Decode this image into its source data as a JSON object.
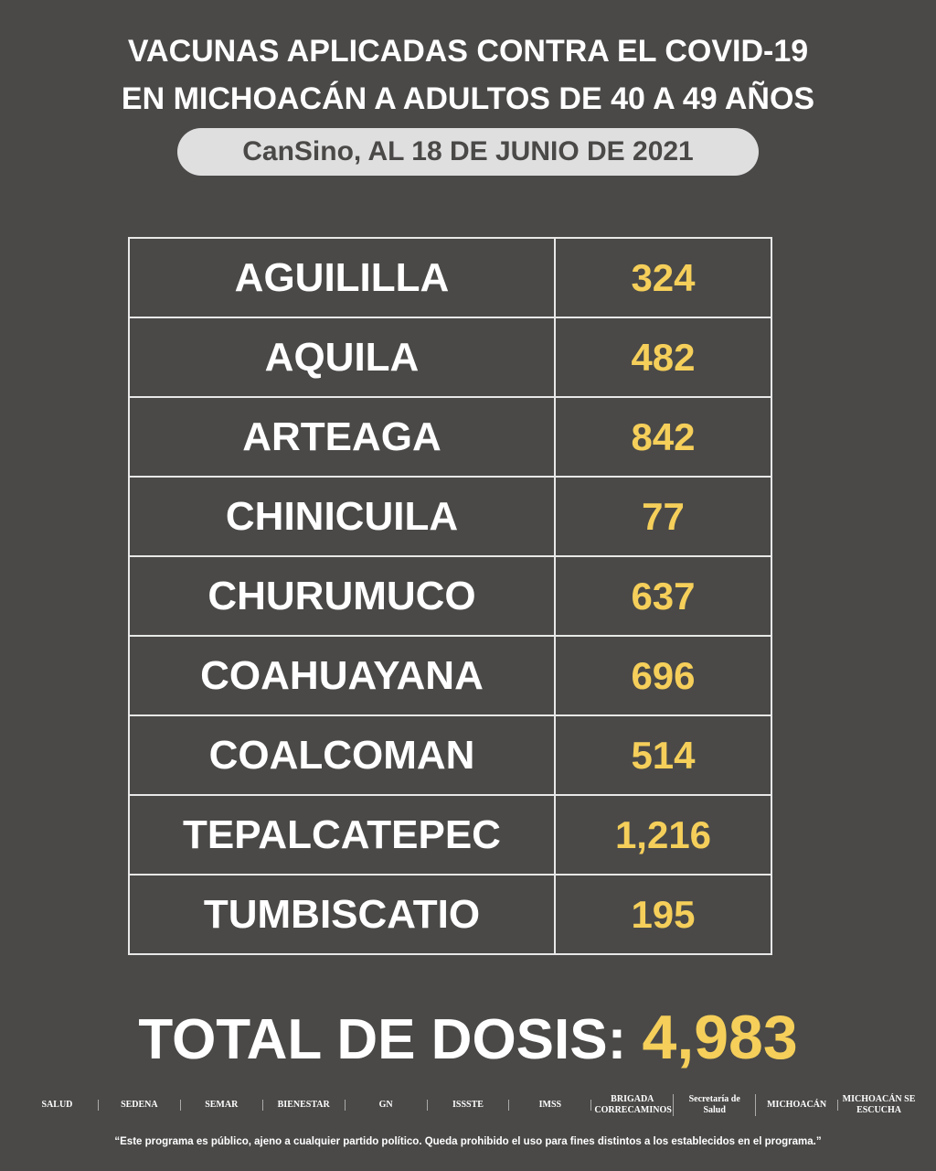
{
  "header": {
    "title_line1": "VACUNAS APLICADAS CONTRA EL COVID-19",
    "title_line2": "EN MICHOACÁN A ADULTOS DE 40 A 49 AÑOS",
    "subtitle": "CanSino, AL 18 DE JUNIO DE 2021"
  },
  "colors": {
    "background": "#4a4948",
    "accent": "#f5cf5a",
    "pill": "#e0dfdf"
  },
  "rows": [
    {
      "municipio": "AGUILILLA",
      "dosis": "324"
    },
    {
      "municipio": "AQUILA",
      "dosis": "482"
    },
    {
      "municipio": "ARTEAGA",
      "dosis": "842"
    },
    {
      "municipio": "CHINICUILA",
      "dosis": "77"
    },
    {
      "municipio": "CHURUMUCO",
      "dosis": "637"
    },
    {
      "municipio": "COAHUAYANA",
      "dosis": "696"
    },
    {
      "municipio": "COALCOMAN",
      "dosis": "514"
    },
    {
      "municipio": "TEPALCATEPEC",
      "dosis": "1,216"
    },
    {
      "municipio": "TUMBISCATIO",
      "dosis": "195"
    }
  ],
  "total": {
    "label": "TOTAL DE DOSIS:",
    "value": "4,983"
  },
  "footer": {
    "logos": [
      "SALUD",
      "SEDENA",
      "SEMAR",
      "BIENESTAR",
      "GN",
      "ISSSTE",
      "IMSS",
      "BRIGADA CORRECAMINOS",
      "Secretaría de Salud",
      "MICHOACÁN",
      "MICHOACÁN SE ESCUCHA"
    ],
    "disclaimer": "“Este programa es público, ajeno a cualquier partido político. Queda prohibido el uso para fines distintos a los establecidos en el programa.”"
  }
}
